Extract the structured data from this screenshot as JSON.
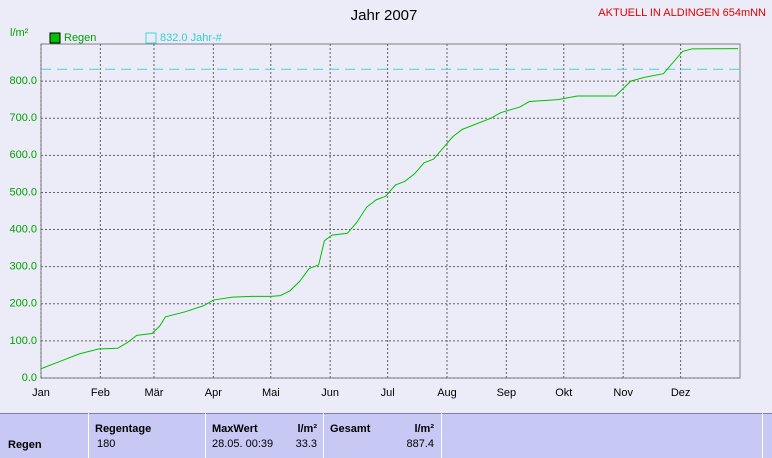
{
  "chart_data": {
    "type": "line",
    "title": "Jahr 2007",
    "annotation": "AKTUELL IN ALDINGEN 654mNN",
    "ylabel": "l/m²",
    "grid": true,
    "xlim": [
      0,
      365
    ],
    "xticks": [
      {
        "value": 0,
        "label": "Jan"
      },
      {
        "value": 31,
        "label": "Feb"
      },
      {
        "value": 59,
        "label": "Mär"
      },
      {
        "value": 90,
        "label": "Apr"
      },
      {
        "value": 120,
        "label": "Mai"
      },
      {
        "value": 151,
        "label": "Jun"
      },
      {
        "value": 181,
        "label": "Jul"
      },
      {
        "value": 212,
        "label": "Aug"
      },
      {
        "value": 243,
        "label": "Sep"
      },
      {
        "value": 273,
        "label": "Okt"
      },
      {
        "value": 304,
        "label": "Nov"
      },
      {
        "value": 334,
        "label": "Dez"
      }
    ],
    "ylim": [
      0,
      900
    ],
    "yticks": [
      {
        "value": 0,
        "label": "0.0"
      },
      {
        "value": 100,
        "label": "100.0"
      },
      {
        "value": 200,
        "label": "200.0"
      },
      {
        "value": 300,
        "label": "300.0"
      },
      {
        "value": 400,
        "label": "400.0"
      },
      {
        "value": 500,
        "label": "500.0"
      },
      {
        "value": 600,
        "label": "600.0"
      },
      {
        "value": 700,
        "label": "700.0"
      },
      {
        "value": 800,
        "label": "800.0"
      }
    ],
    "series": [
      {
        "name": "Regen",
        "color": "#00c000",
        "x": [
          0,
          10,
          20,
          30,
          40,
          45,
          50,
          58,
          62,
          65,
          75,
          85,
          90,
          100,
          110,
          120,
          125,
          130,
          135,
          140,
          145,
          148,
          152,
          160,
          165,
          170,
          175,
          180,
          185,
          190,
          195,
          200,
          205,
          210,
          215,
          220,
          225,
          235,
          240,
          250,
          255,
          270,
          280,
          300,
          308,
          315,
          325,
          330,
          335,
          340,
          364
        ],
        "values": [
          25,
          45,
          65,
          78,
          80,
          95,
          115,
          120,
          140,
          165,
          178,
          195,
          210,
          218,
          220,
          220,
          222,
          235,
          260,
          295,
          305,
          370,
          385,
          390,
          420,
          460,
          480,
          490,
          520,
          530,
          550,
          580,
          590,
          620,
          650,
          670,
          680,
          700,
          715,
          730,
          745,
          750,
          760,
          760,
          800,
          810,
          820,
          850,
          880,
          887,
          887.4
        ]
      }
    ],
    "reference_line": {
      "name": "832.0 Jahr-#",
      "value": 832,
      "color": "#40d8d8"
    }
  },
  "table": {
    "headers": [
      "Regentage",
      "MaxWert",
      "l/m²",
      "Gesamt",
      "l/m²"
    ],
    "rows": [
      {
        "label": "Regen",
        "cells": [
          "180",
          "28.05. 00:39",
          "33.3",
          "887.4"
        ]
      }
    ]
  }
}
